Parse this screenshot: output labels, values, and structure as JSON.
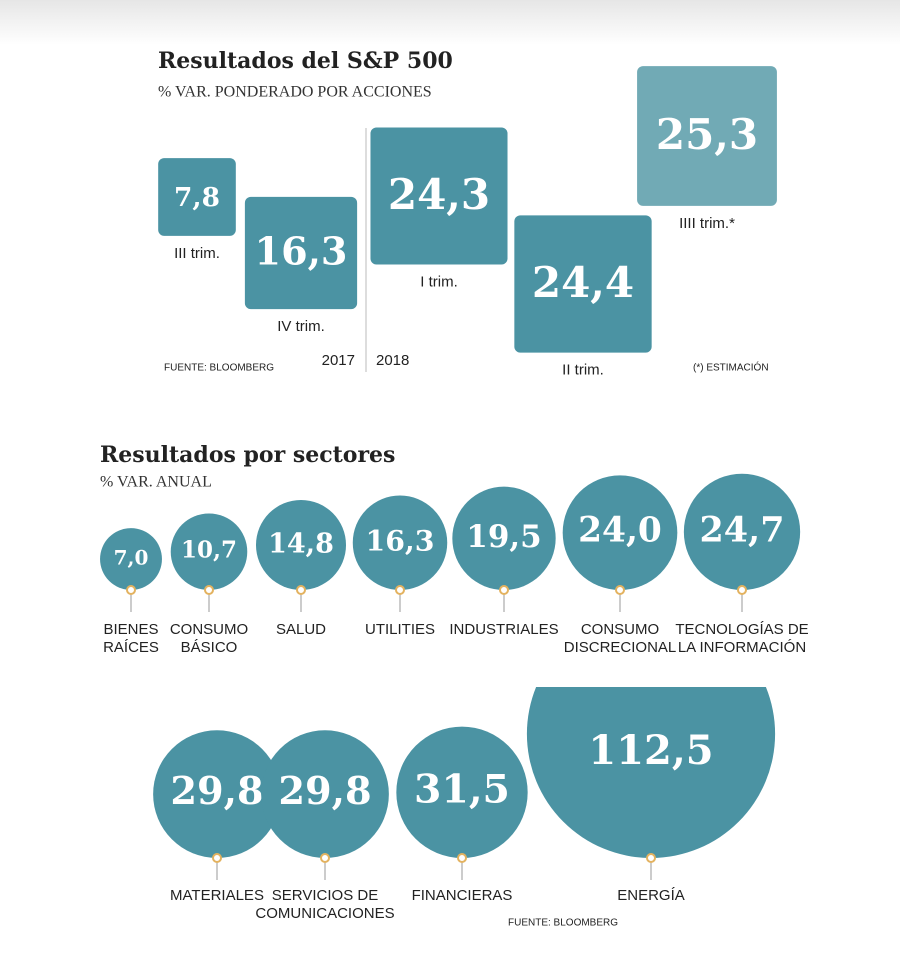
{
  "chart_data": [
    {
      "type": "square",
      "title": "Resultados del S&P 500",
      "subtitle": "% VAR. PONDERADO POR ACCIONES",
      "categories": [
        "III trim.",
        "IV trim.",
        "I trim.",
        "II trim.",
        "IIII trim.*"
      ],
      "values": [
        7.8,
        16.3,
        24.3,
        24.4,
        25.3
      ],
      "value_labels": [
        "7,8",
        "16,3",
        "24,3",
        "24,4",
        "25,3"
      ],
      "colors": [
        "#4b93a3",
        "#4b93a3",
        "#4b93a3",
        "#4b93a3",
        "#71aab5"
      ],
      "years": [
        "2017",
        "2018"
      ],
      "source": "FUENTE: BLOOMBERG",
      "note": "(*) ESTIMACIÓN"
    },
    {
      "type": "bubble",
      "title": "Resultados por sectores",
      "subtitle": "% VAR. ANUAL",
      "categories": [
        [
          "BIENES",
          "RAÍCES"
        ],
        [
          "CONSUMO",
          "BÁSICO"
        ],
        [
          "SALUD"
        ],
        [
          "UTILITIES"
        ],
        [
          "INDUSTRIALES"
        ],
        [
          "CONSUMO",
          "DISCRECIONAL"
        ],
        [
          "TECNOLOGÍAS DE",
          "LA INFORMACIÓN"
        ],
        [
          "MATERIALES"
        ],
        [
          "SERVICIOS DE",
          "COMUNICACIONES"
        ],
        [
          "FINANCIERAS"
        ],
        [
          "ENERGÍA"
        ]
      ],
      "values": [
        7.0,
        10.7,
        14.8,
        16.3,
        19.5,
        24.0,
        24.7,
        29.8,
        29.8,
        31.5,
        112.5
      ],
      "value_labels": [
        "7,0",
        "10,7",
        "14,8",
        "16,3",
        "19,5",
        "24,0",
        "24,7",
        "29,8",
        "29,8",
        "31,5",
        "112,5"
      ],
      "color": "#4b93a3",
      "source": "FUENTE: BLOOMBERG"
    }
  ]
}
